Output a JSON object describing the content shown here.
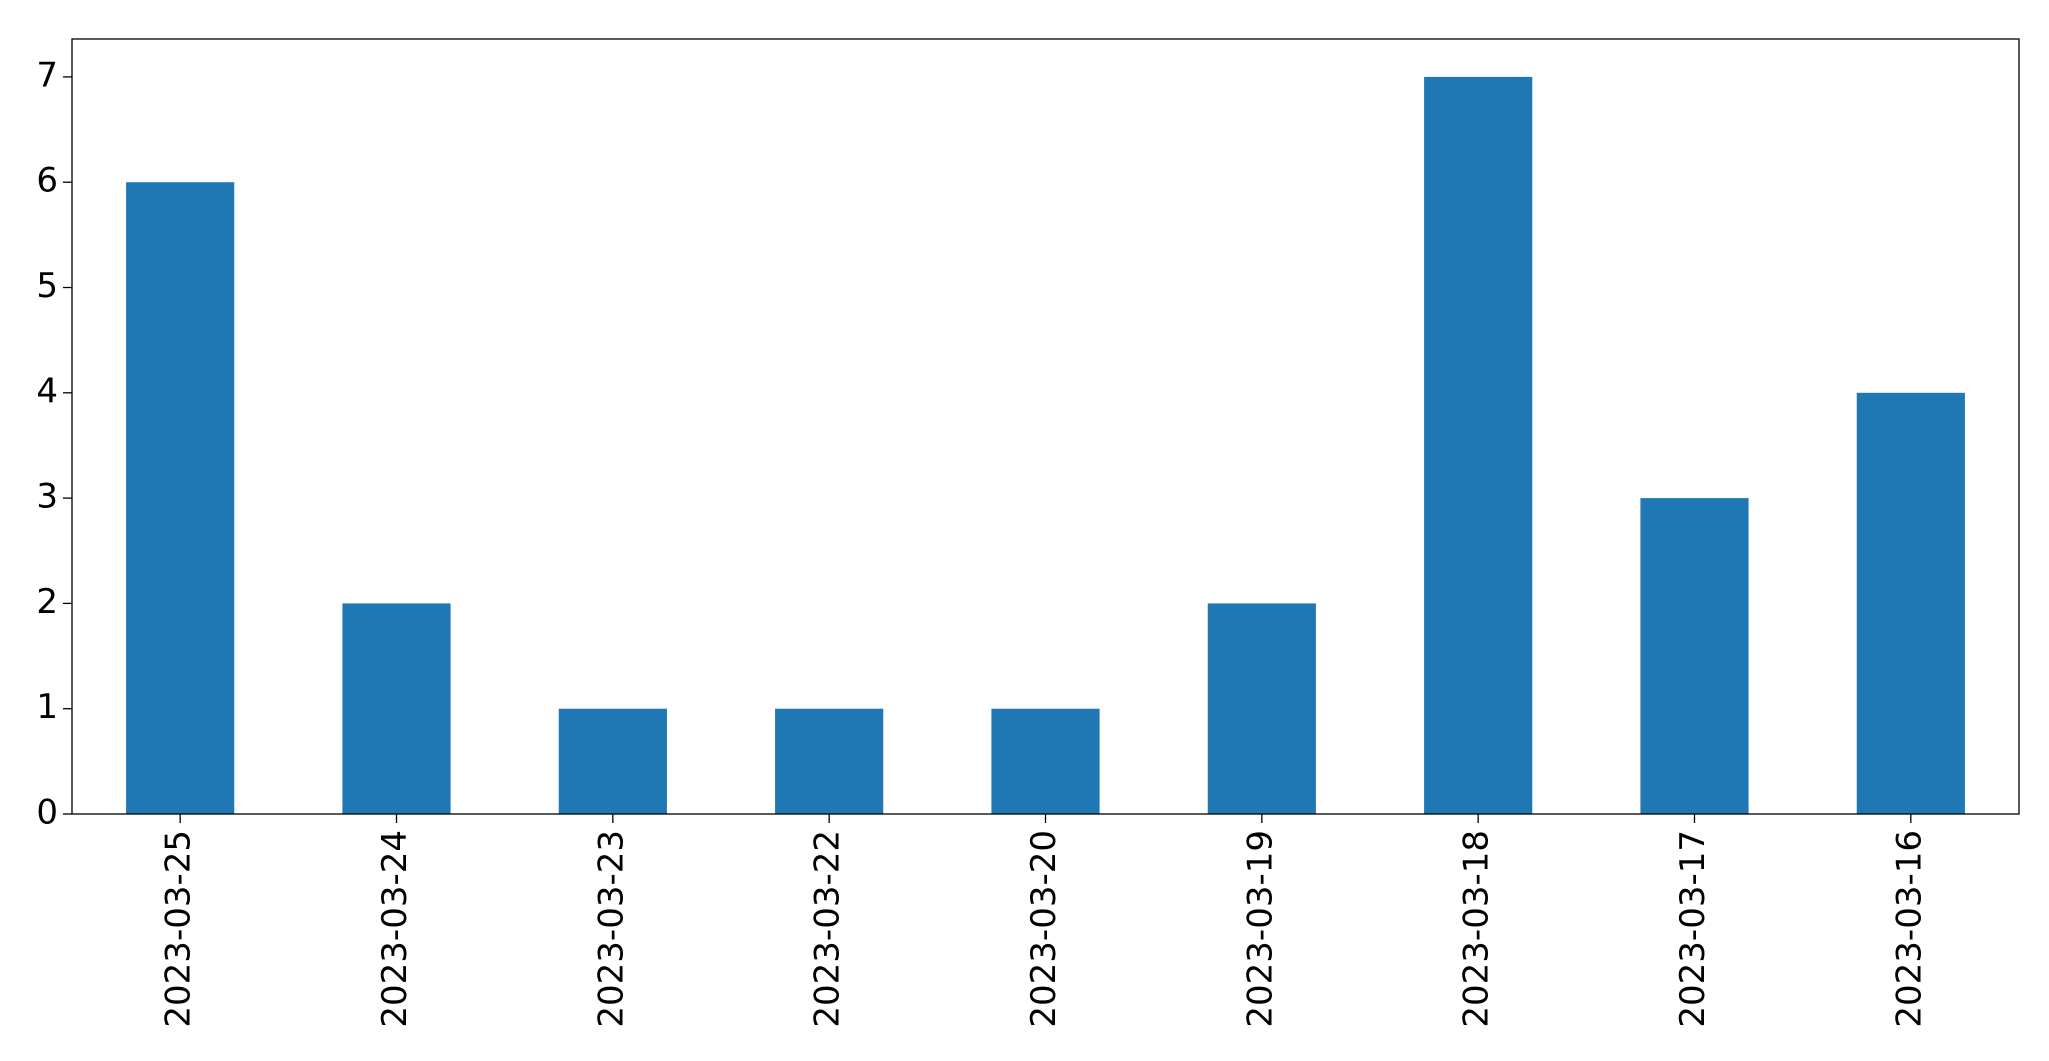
{
  "chart_data": {
    "type": "bar",
    "categories": [
      "2023-03-25",
      "2023-03-24",
      "2023-03-23",
      "2023-03-22",
      "2023-03-20",
      "2023-03-19",
      "2023-03-18",
      "2023-03-17",
      "2023-03-16"
    ],
    "values": [
      6,
      2,
      1,
      1,
      1,
      2,
      7,
      3,
      4
    ],
    "color": "#1f77b4",
    "ylim": [
      0,
      7.36
    ],
    "yticks": [
      0,
      1,
      2,
      3,
      4,
      5,
      6,
      7
    ],
    "grid": false
  }
}
